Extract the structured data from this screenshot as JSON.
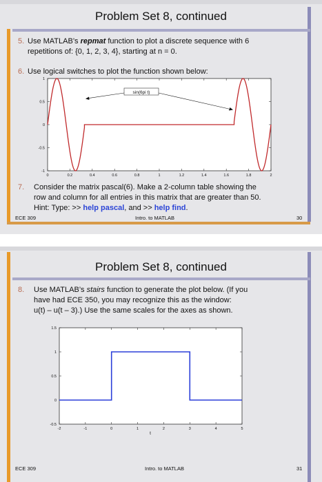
{
  "slide1": {
    "title": "Problem Set 8, continued",
    "item5": {
      "num": "5.",
      "text_a": "Use MATLAB’s ",
      "text_em": "repmat",
      "text_b": " function to plot a discrete sequence with 6",
      "line2": "repetitions of: {0, 1, 2, 3, 4}, starting at n = 0."
    },
    "item6": {
      "num": "6.",
      "text": "Use logical switches to plot the function shown below:"
    },
    "plot1": {
      "legend": "sin(6pi t)",
      "xticks": [
        "0",
        "0.2",
        "0.4",
        "0.6",
        "0.8",
        "1",
        "1.2",
        "1.4",
        "1.6",
        "1.8",
        "2"
      ],
      "yticks": [
        "1",
        "0.5",
        "0",
        "-0.5",
        "-1"
      ]
    },
    "item7": {
      "num": "7.",
      "line1": "Consider the matrix pascal(6).  Make a 2-column table showing the",
      "line2": "row and column for all entries in this matrix that are greater than 50.",
      "line3_a": "Hint: Type:  >> ",
      "line3_b": "help pascal",
      "line3_c": ", and >> ",
      "line3_d": "help find",
      "line3_e": "."
    },
    "footer": {
      "left": "ECE 309",
      "center": "Intro. to MATLAB",
      "right": "30"
    }
  },
  "slide2": {
    "title": "Problem Set 8, continued",
    "item8": {
      "num": "8.",
      "line1_a": "Use MATLAB’s ",
      "line1_em": "stairs",
      "line1_b": " function to generate the plot below.  (If you",
      "line2": "have had ECE 350, you may recognize this as the window:",
      "line3": "u(t) – u(t – 3).)  Use the same scales for the axes as shown."
    },
    "plot2": {
      "xticks": [
        "-2",
        "-1",
        "0",
        "1",
        "2",
        "3",
        "4",
        "5"
      ],
      "yticks": [
        "1.5",
        "1",
        "0.5",
        "0",
        "-0.5"
      ],
      "xlabel": "t"
    },
    "footer": {
      "left": "ECE 309",
      "center": "Intro. to MATLAB",
      "right": "31"
    }
  },
  "chart_data": [
    {
      "type": "line",
      "title": "",
      "x_range": [
        0,
        2
      ],
      "ylim": [
        -1,
        1
      ],
      "legend": [
        "sin(6pi t)"
      ],
      "series": [
        {
          "name": "sin(6pi t)",
          "segments": [
            {
              "x_from": 0,
              "x_to": 0.33,
              "formula": "sin(6*pi*t)"
            },
            {
              "x_from": 0.33,
              "x_to": 1.67,
              "value": 0
            },
            {
              "x_from": 1.67,
              "x_to": 2,
              "formula": "sin(6*pi*t)"
            }
          ]
        }
      ],
      "colors": {
        "line": "#c0292b"
      }
    },
    {
      "type": "line",
      "title": "",
      "xlabel": "t",
      "xlim": [
        -2,
        5
      ],
      "ylim": [
        -0.5,
        1.5
      ],
      "series": [
        {
          "x": [
            -2,
            0,
            0,
            3,
            3,
            5
          ],
          "y": [
            0,
            0,
            1,
            1,
            0,
            0
          ]
        }
      ],
      "colors": {
        "line": "#2b3fd9"
      }
    }
  ]
}
